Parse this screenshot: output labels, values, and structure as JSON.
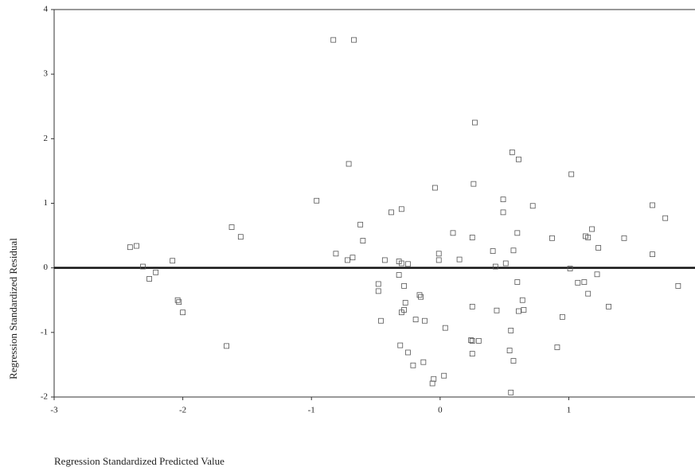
{
  "chart_data": {
    "type": "scatter",
    "x_label": "Regression Standardized Predicted Value",
    "y_label": "Regression Standardized Residual",
    "x": [
      -0.83,
      -0.67,
      0.27,
      -0.71,
      0.56,
      0.61,
      1.02,
      0.26,
      -0.04,
      -0.96,
      0.49,
      0.72,
      1.65,
      -0.3,
      -0.38,
      0.49,
      1.75,
      -0.62,
      -1.62,
      0.1,
      0.6,
      1.18,
      -1.55,
      0.25,
      0.87,
      1.13,
      1.15,
      1.43,
      -0.6,
      -2.36,
      -2.41,
      1.23,
      0.41,
      0.57,
      -0.81,
      -0.01,
      1.65,
      -0.68,
      -0.72,
      0.15,
      -0.01,
      -2.08,
      -0.43,
      -0.32,
      -0.3,
      -0.25,
      0.51,
      -2.31,
      0.43,
      1.01,
      -2.21,
      1.22,
      -0.32,
      -2.26,
      1.07,
      1.12,
      0.6,
      -0.48,
      -0.28,
      1.85,
      -0.48,
      1.15,
      -0.16,
      -0.15,
      -2.04,
      -2.03,
      0.64,
      -0.27,
      1.31,
      0.25,
      -2.0,
      -0.28,
      -0.3,
      0.44,
      0.65,
      0.61,
      0.95,
      -0.46,
      -0.19,
      -0.12,
      0.55,
      0.04,
      0.24,
      0.25,
      0.3,
      -1.66,
      -0.31,
      0.91,
      0.54,
      -0.25,
      0.25,
      0.57,
      -0.13,
      -0.21,
      -0.05,
      -0.06,
      0.03,
      0.55
    ],
    "values": [
      3.53,
      3.53,
      2.25,
      1.61,
      1.79,
      1.68,
      1.45,
      1.3,
      1.24,
      1.04,
      1.06,
      0.96,
      0.97,
      0.91,
      0.86,
      0.86,
      0.77,
      0.67,
      0.63,
      0.54,
      0.54,
      0.6,
      0.48,
      0.47,
      0.46,
      0.49,
      0.47,
      0.46,
      0.42,
      0.34,
      0.32,
      0.31,
      0.26,
      0.27,
      0.22,
      0.22,
      0.21,
      0.16,
      0.12,
      0.13,
      0.12,
      0.11,
      0.12,
      0.1,
      0.07,
      0.06,
      0.07,
      0.02,
      0.02,
      -0.01,
      -0.07,
      -0.1,
      -0.11,
      -0.17,
      -0.23,
      -0.22,
      -0.22,
      -0.25,
      -0.28,
      -0.28,
      -0.36,
      -0.4,
      -0.42,
      -0.45,
      -0.5,
      -0.53,
      -0.5,
      -0.54,
      -0.6,
      -0.6,
      -0.69,
      -0.65,
      -0.69,
      -0.66,
      -0.65,
      -0.67,
      -0.76,
      -0.82,
      -0.8,
      -0.82,
      -0.97,
      -0.93,
      -1.12,
      -1.13,
      -1.13,
      -1.21,
      -1.2,
      -1.23,
      -1.28,
      -1.31,
      -1.33,
      -1.44,
      -1.46,
      -1.51,
      -1.72,
      -1.79,
      -1.67,
      -1.93
    ],
    "color": "#555555",
    "xlim": [
      -3,
      1.95
    ],
    "xticks": [
      -3,
      -2,
      -1,
      0,
      1
    ],
    "ylim": [
      -2,
      4
    ],
    "yticks": [
      -2,
      -1,
      0,
      1,
      2,
      3,
      4
    ],
    "reference_line": 0,
    "grid": false
  }
}
